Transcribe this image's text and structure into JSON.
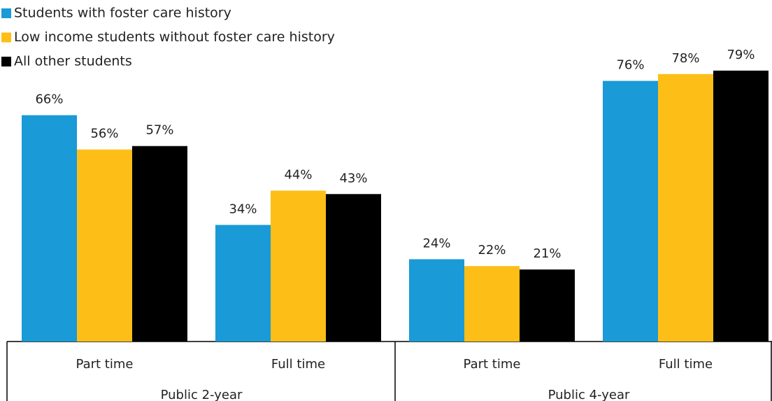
{
  "chart_data": {
    "type": "bar",
    "groups": [
      "Public 2-year",
      "Public 4-year"
    ],
    "categories": [
      "Part time",
      "Full time",
      "Part time",
      "Full time"
    ],
    "series": [
      {
        "name": "Students with foster care history",
        "color": "#1a9ad6",
        "values": [
          66,
          34,
          24,
          76
        ],
        "value_labels": [
          "66%",
          "34%",
          "24%",
          "76%"
        ]
      },
      {
        "name": "Low income students without foster care history",
        "color": "#fdbf17",
        "values": [
          56,
          44,
          22,
          78
        ],
        "value_labels": [
          "56%",
          "44%",
          "22%",
          "78%"
        ]
      },
      {
        "name": "All other students",
        "color": "#000000",
        "values": [
          57,
          43,
          21,
          79
        ],
        "value_labels": [
          "57%",
          "43%",
          "21%",
          "79%"
        ]
      }
    ],
    "legend": "top-left"
  }
}
